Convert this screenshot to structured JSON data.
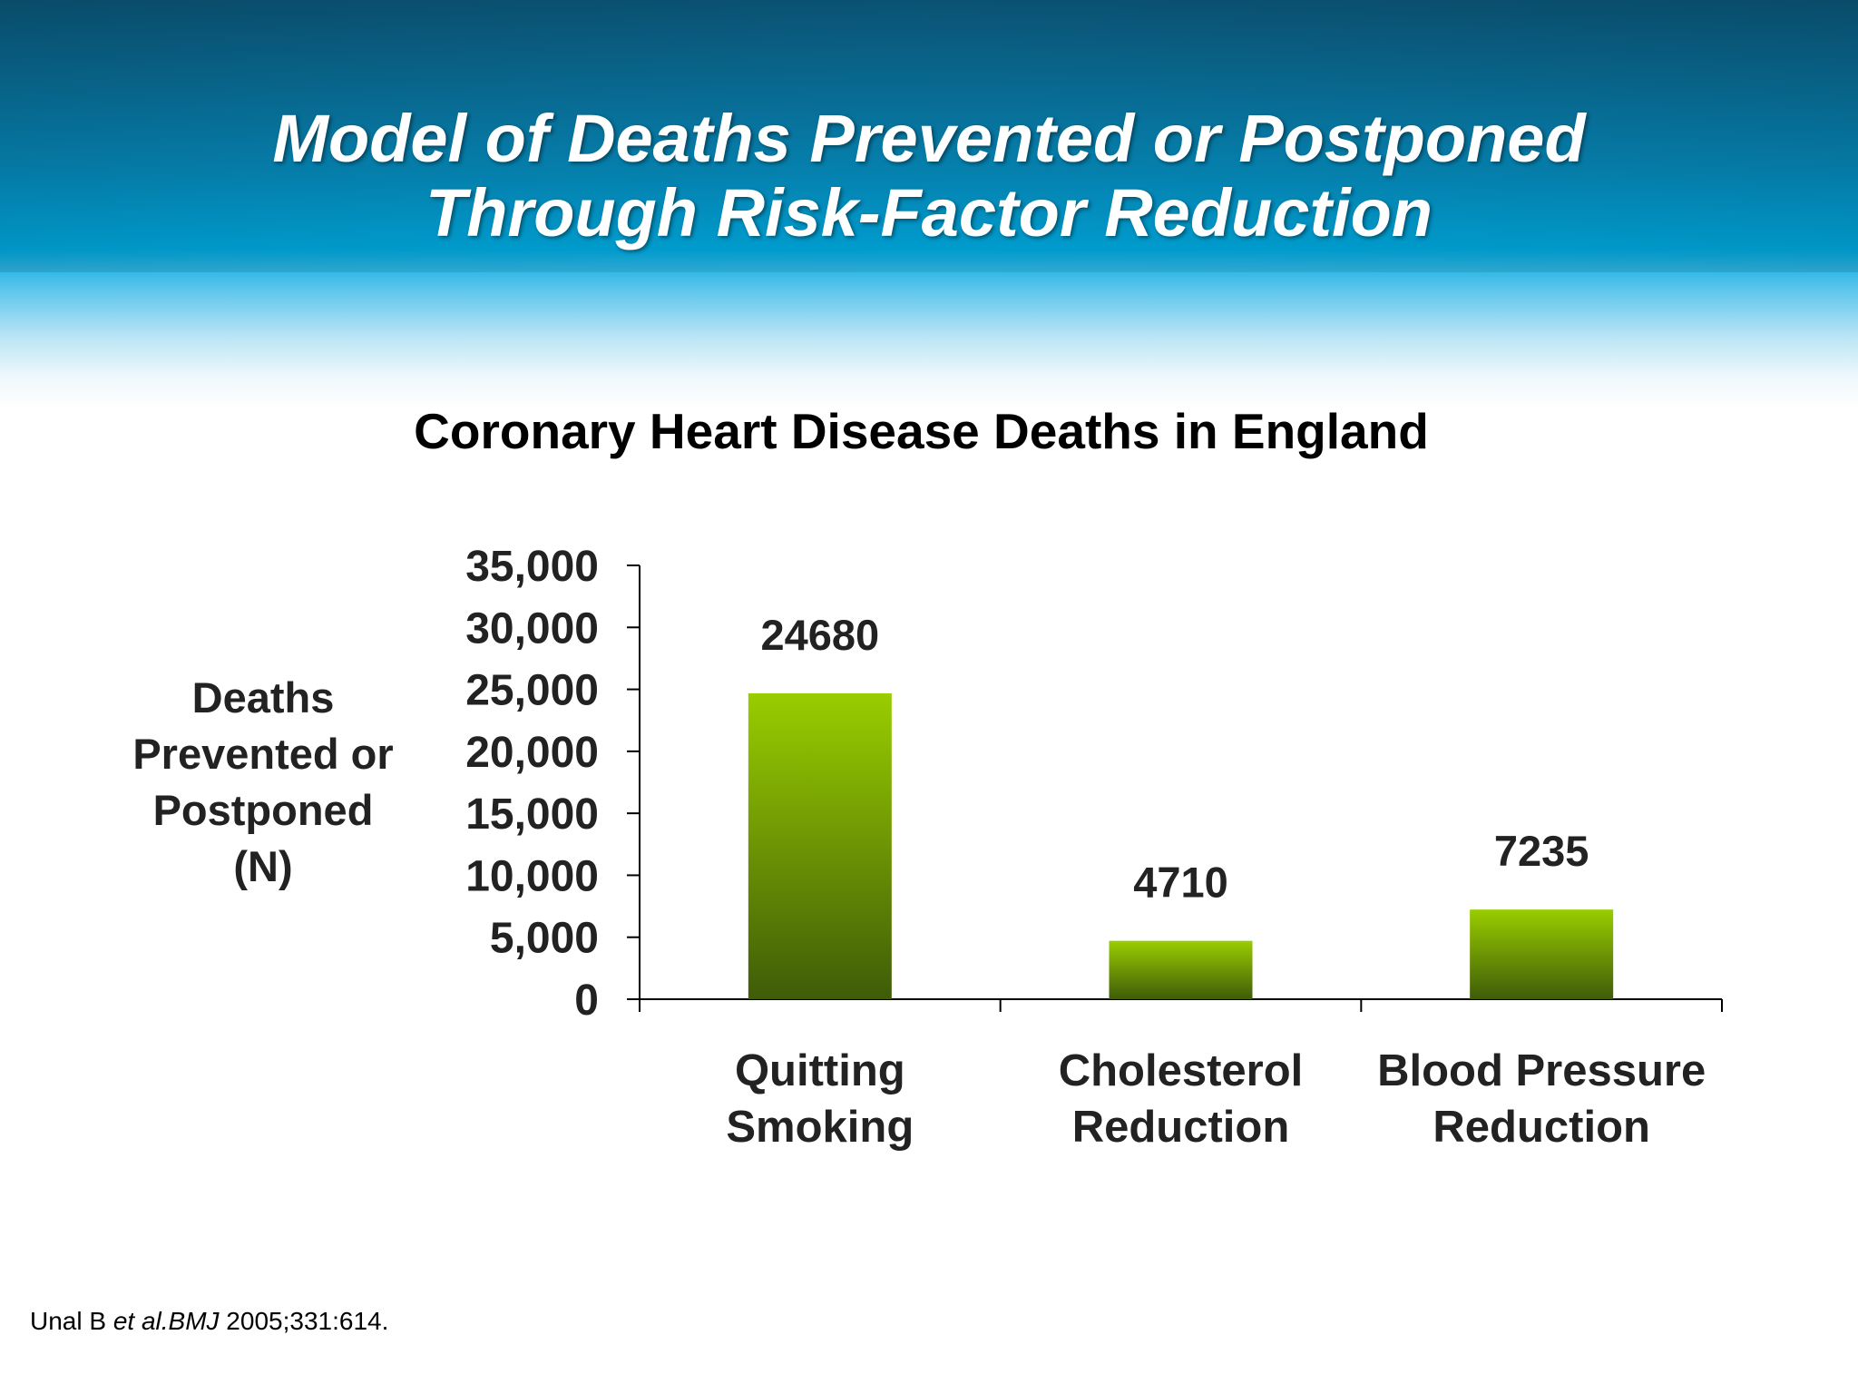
{
  "slide": {
    "title_line1": "Model of Deaths Prevented or Postponed",
    "title_line2": "Through Risk-Factor Reduction",
    "citation": {
      "author": "Unal B ",
      "etal": "et al.",
      "journal": "BMJ",
      "ref": " 2005;331:614."
    }
  },
  "colors": {
    "bar_top": "#9acd00",
    "bar_bottom": "#3f5c08",
    "header_dark": "#0a5273",
    "header_light": "#00a9df"
  },
  "chart_data": {
    "type": "bar",
    "title": "Coronary Heart Disease Deaths in England",
    "ylabel_lines": [
      "Deaths",
      "Prevented or",
      "Postponed",
      "(N)"
    ],
    "xlabel": "",
    "categories": [
      [
        "Quitting",
        "Smoking"
      ],
      [
        "Cholesterol",
        "Reduction"
      ],
      [
        "Blood Pressure",
        "Reduction"
      ]
    ],
    "values": [
      24680,
      4710,
      7235
    ],
    "data_labels": [
      "24680",
      "4710",
      "7235"
    ],
    "ylim": [
      0,
      35000
    ],
    "yticks": [
      0,
      5000,
      10000,
      15000,
      20000,
      25000,
      30000,
      35000
    ],
    "ytick_labels": [
      "0",
      "5,000",
      "10,000",
      "15,000",
      "20,000",
      "25,000",
      "30,000",
      "35,000"
    ],
    "grid": false,
    "legend": "none"
  }
}
